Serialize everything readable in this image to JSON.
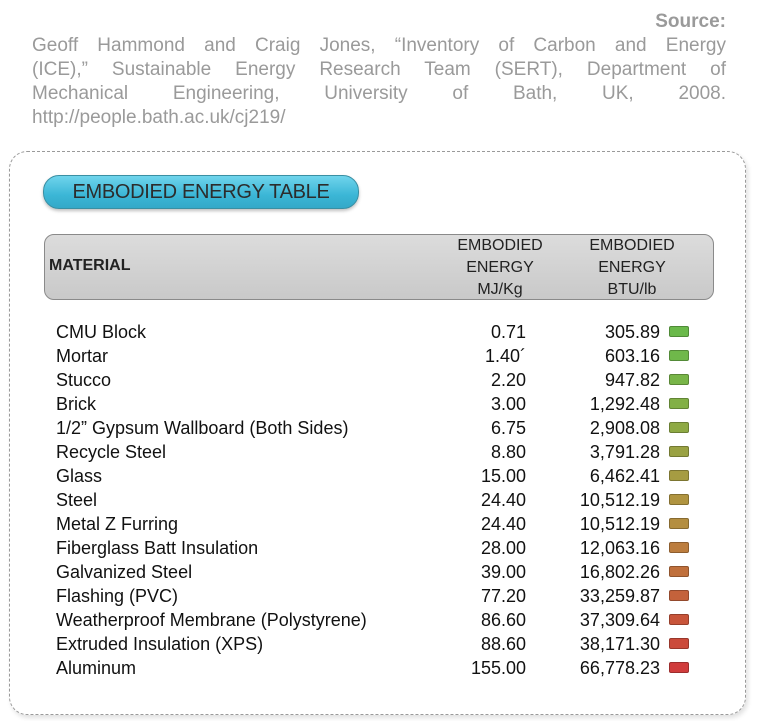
{
  "source": {
    "title": "Source:",
    "line1": "Geoff Hammond and Craig Jones, “Inventory of Carbon and Energy",
    "line2": "(ICE),” Sustainable Energy Research Team (SERT), Department of",
    "line3": "Mechanical Engineering, University of Bath, UK, 2008.",
    "url": "http://people.bath.ac.uk/cj219/"
  },
  "table": {
    "title": "EMBODIED ENERGY TABLE",
    "headers": {
      "material": "MATERIAL",
      "mj": [
        "EMBODIED",
        "ENERGY",
        "MJ/Kg"
      ],
      "btu": [
        "EMBODIED",
        "ENERGY",
        "BTU/lb"
      ]
    },
    "rows": [
      {
        "material": "CMU Block",
        "mj": "0.71",
        "btu": "305.89",
        "color": "#6ab94a"
      },
      {
        "material": "Mortar",
        "mj": "1.40´",
        "btu": "603.16",
        "color": "#6fb84a"
      },
      {
        "material": "Stucco",
        "mj": "2.20",
        "btu": "947.82",
        "color": "#78b548"
      },
      {
        "material": "Brick",
        "mj": "3.00",
        "btu": "1,292.48",
        "color": "#82b046"
      },
      {
        "material": "1/2” Gypsum Wallboard (Both Sides)",
        "mj": "6.75",
        "btu": "2,908.08",
        "color": "#8ea944"
      },
      {
        "material": "Recycle Steel",
        "mj": "8.80",
        "btu": "3,791.28",
        "color": "#9aa243"
      },
      {
        "material": "Glass",
        "mj": "15.00",
        "btu": "6,462.41",
        "color": "#a69c42"
      },
      {
        "material": "Steel",
        "mj": "24.40",
        "btu": "10,512.19",
        "color": "#b09440"
      },
      {
        "material": "Metal Z Furring",
        "mj": "24.40",
        "btu": "10,512.19",
        "color": "#b48e40"
      },
      {
        "material": "Fiberglass Batt Insulation",
        "mj": "28.00",
        "btu": "12,063.16",
        "color": "#bc7d3e"
      },
      {
        "material": "Galvanized Steel",
        "mj": "39.00",
        "btu": "16,802.26",
        "color": "#c0703c"
      },
      {
        "material": "Flashing (PVC)",
        "mj": "77.20",
        "btu": "33,259.87",
        "color": "#c4623b"
      },
      {
        "material": "Weatherproof Membrane (Polystyrene)",
        "mj": "86.60",
        "btu": "37,309.64",
        "color": "#c8553a"
      },
      {
        "material": "Extruded Insulation (XPS)",
        "mj": "88.60",
        "btu": "38,171.30",
        "color": "#cb4a3a"
      },
      {
        "material": "Aluminum",
        "mj": "155.00",
        "btu": "66,778.23",
        "color": "#d03c3c"
      }
    ]
  }
}
